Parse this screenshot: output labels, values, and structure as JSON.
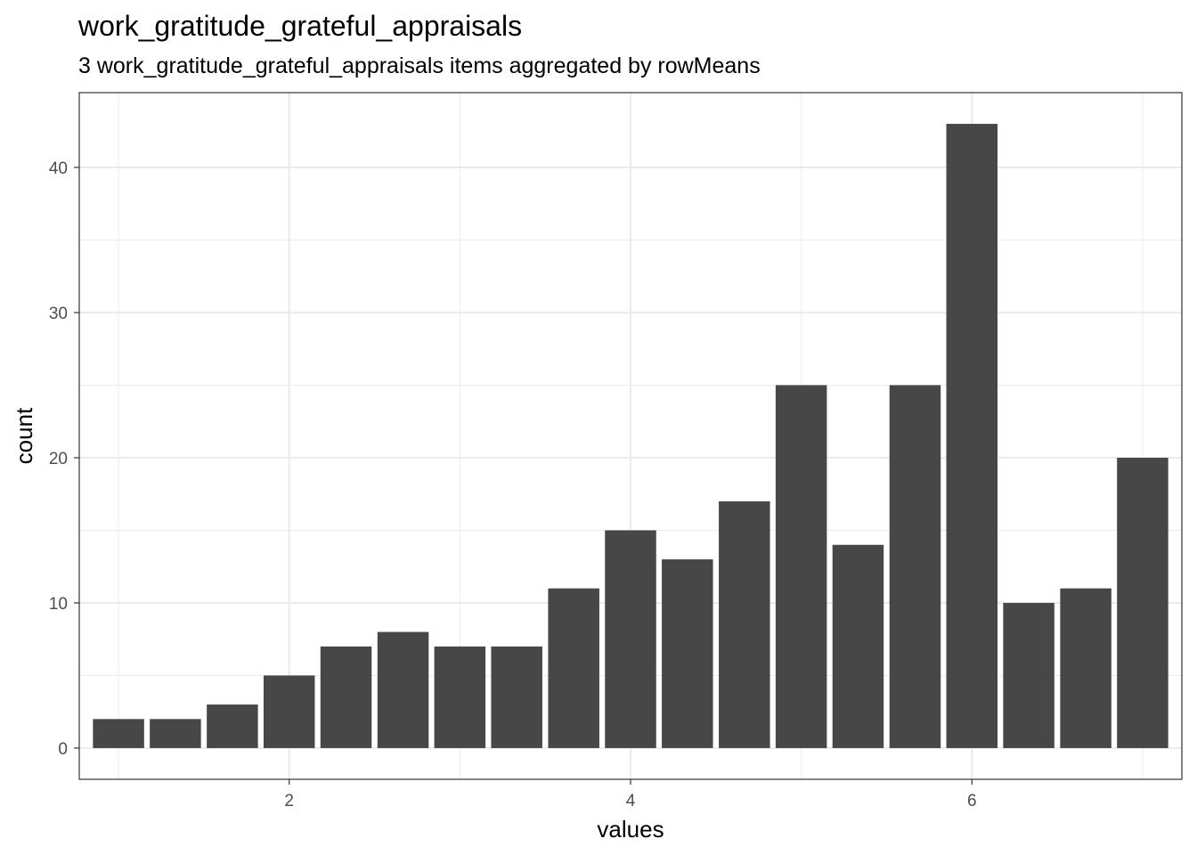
{
  "chart_data": {
    "type": "bar",
    "title": "work_gratitude_grateful_appraisals",
    "subtitle": "3 work_gratitude_grateful_appraisals items aggregated by rowMeans",
    "xlabel": "values",
    "ylabel": "count",
    "x": [
      1.0,
      1.333,
      1.667,
      2.0,
      2.333,
      2.667,
      3.0,
      3.333,
      3.667,
      4.0,
      4.333,
      4.667,
      5.0,
      5.333,
      5.667,
      6.0,
      6.333,
      6.667,
      7.0
    ],
    "values": [
      2,
      2,
      3,
      5,
      7,
      8,
      7,
      7,
      11,
      15,
      13,
      17,
      25,
      14,
      25,
      43,
      10,
      11,
      20
    ],
    "bar_width": 0.3,
    "xlim": [
      0.77,
      7.23
    ],
    "ylim": [
      -2.15,
      45.15
    ],
    "x_ticks": [
      2,
      4,
      6
    ],
    "x_minor_ticks": [
      1,
      3,
      5,
      7
    ],
    "y_ticks": [
      0,
      10,
      20,
      30,
      40
    ],
    "y_minor_ticks": [
      5,
      15,
      25,
      35
    ],
    "grid": true,
    "colors": {
      "bar": "#474747",
      "grid": "#ebebeb",
      "panel_border": "#333333"
    }
  }
}
